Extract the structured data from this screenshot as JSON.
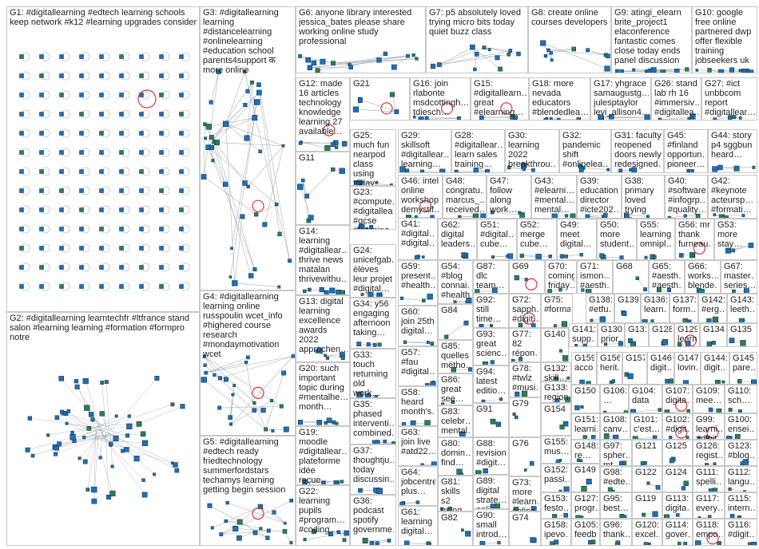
{
  "colors": {
    "edge": "#9aa0a8",
    "node_fill": "#1f6fb2",
    "node_stroke": "#0a2f55",
    "self_loop": "#e0343c",
    "border": "#c8c8c8"
  },
  "groups": [
    {
      "id": "G1",
      "label": "G1: #digitallearning #edtech learning schools keep network #k12 #learning upgrades consider"
    },
    {
      "id": "G2",
      "label": "G2: #digitallearning learntechfr #ltfrance stand salon #learning learning #formation #formpro notre"
    },
    {
      "id": "G3",
      "label": "G3: #digitallearning learning #distancelearning #onlinelearning #education school parents4support क more online"
    },
    {
      "id": "G4",
      "label": "G4: #digitallearning learning online russpoulin wcet_info #highered course research #mondaymotivation wcet"
    },
    {
      "id": "G5",
      "label": "G5: #digitallearning #edtech ready friedtechnology summerfordstars techamys learning getting begin session"
    },
    {
      "id": "G6",
      "label": "G6: anyone library interested jessica_bates please share working online study professional"
    },
    {
      "id": "G7",
      "label": "G7: p5 absolutely loved trying micro bits today quiet buzz class"
    },
    {
      "id": "G8",
      "label": "G8: create online courses developers"
    },
    {
      "id": "G9",
      "label": "G9: atingi_elearn brite_project1 elaconference fantastic comes close today ends panel discussion"
    },
    {
      "id": "G10",
      "label": "G10: google free online partnered dwp offer flexible training jobseekers uk"
    },
    {
      "id": "G11",
      "label": "G11"
    },
    {
      "id": "G12",
      "label": "G12: made 16 articles technology knowledge learning 27 available…"
    },
    {
      "id": "G13",
      "label": "G13: digital learning excellence awards 2022 approchen…"
    },
    {
      "id": "G14",
      "label": "G14: learning #digitallear… thrive news matalan thrivewithu…"
    },
    {
      "id": "G15",
      "label": "G15: #digitallearn… great #elearning…"
    },
    {
      "id": "G16",
      "label": "G16: join rlabonte msdcottingh… tdiesch…"
    },
    {
      "id": "G17",
      "label": "G17: yhgrace samaugustg… julesptaylor levi_allison4…"
    },
    {
      "id": "G18",
      "label": "G18: more nevada educators #blendedlea…"
    },
    {
      "id": "G19",
      "label": "G19: moodle #digitallear… plateforme idée reçue…"
    },
    {
      "id": "G20",
      "label": "G20: such important topic during #mentalhe… month…"
    },
    {
      "id": "G21",
      "label": "G21"
    },
    {
      "id": "G22",
      "label": "G22: learning pupils #program… #coding…"
    },
    {
      "id": "G23",
      "label": "G23: #compute… #digitallea… #gcse #learning…"
    },
    {
      "id": "G24",
      "label": "G24: unicefgab… élèves leur projet #digital…"
    },
    {
      "id": "G25",
      "label": "G25: much fun nearpod class using today…"
    },
    {
      "id": "G26",
      "label": "G26: stand lab rh 16 #immersiv… #digitallea…"
    },
    {
      "id": "G27",
      "label": "G27: #ict unbbcom report #digitallear…"
    },
    {
      "id": "G28",
      "label": "G28: #digitallear… learn sales training…"
    },
    {
      "id": "G29",
      "label": "G29: skillsoft #digitallear… learning…"
    },
    {
      "id": "G30",
      "label": "G30: learning 2022 breakthrou…"
    },
    {
      "id": "G31",
      "label": "G31: faculty reopened doors newly redesigned…"
    },
    {
      "id": "G32",
      "label": "G32: pandemic shift #onlinelea…"
    },
    {
      "id": "G33",
      "label": "G33: touch returning old work…"
    },
    {
      "id": "G34",
      "label": "G34: y56 engaging afternoon taking…"
    },
    {
      "id": "G35",
      "label": "G35: phased interventi… combined…"
    },
    {
      "id": "G36",
      "label": "G36: podcast spotify governme…"
    },
    {
      "id": "G37",
      "label": "G37: thoughtju… today discussin…"
    },
    {
      "id": "G38",
      "label": "G38: primary loved trying vr…"
    },
    {
      "id": "G39",
      "label": "G39: education director #icte202…"
    },
    {
      "id": "G40",
      "label": "G40: #software #infogrp… #quality…"
    },
    {
      "id": "G41",
      "label": "G41: #digital… #digital…"
    },
    {
      "id": "G42",
      "label": "G42: #keynote acteursp… #formati…"
    },
    {
      "id": "G43",
      "label": "G43: #elearni… #mental… mental…"
    },
    {
      "id": "G44",
      "label": "G44: story p4 sggbun heard…"
    },
    {
      "id": "G45",
      "label": "G45: #finland opportun… pioneer…"
    },
    {
      "id": "G46",
      "label": "G46: intel online workshop demystif…"
    },
    {
      "id": "G47",
      "label": "G47: follow along work…"
    },
    {
      "id": "G48",
      "label": "G48: congratu… marcus_… received…"
    },
    {
      "id": "G49",
      "label": "G49: meet digital…"
    },
    {
      "id": "G50",
      "label": "G50: more student…"
    },
    {
      "id": "G51",
      "label": "G51: #digital… cube…"
    },
    {
      "id": "G52",
      "label": "G52: merge cube…"
    },
    {
      "id": "G53",
      "label": "G53: more stay…"
    },
    {
      "id": "G54",
      "label": "G54: #blog connai… #health…"
    },
    {
      "id": "G55",
      "label": "G55: learning omnipl…"
    },
    {
      "id": "G56",
      "label": "G56: mr thank furneau…"
    },
    {
      "id": "G57",
      "label": "G57: #fau #digital…"
    },
    {
      "id": "G58",
      "label": "G58: heard month's…"
    },
    {
      "id": "G59",
      "label": "G59: present… #health…"
    },
    {
      "id": "G60",
      "label": "G60: join 25th digital…"
    },
    {
      "id": "G61",
      "label": "G61: learning digital…"
    },
    {
      "id": "G62",
      "label": "G62: digital leaders…"
    },
    {
      "id": "G63",
      "label": "G63: join live #atd22…"
    },
    {
      "id": "G64",
      "label": "G64: jobcentre plus…"
    },
    {
      "id": "G65",
      "label": "G65: #aesth… #aesth…"
    },
    {
      "id": "G66",
      "label": "G66: works… blende…"
    },
    {
      "id": "G67",
      "label": "G67: master… series…"
    },
    {
      "id": "G68",
      "label": "G68"
    },
    {
      "id": "G69",
      "label": "G69"
    },
    {
      "id": "G70",
      "label": "G70: coming friday…"
    },
    {
      "id": "G71",
      "label": "G71: ismon… #aesth…"
    },
    {
      "id": "G72",
      "label": "G72: sapph… #digit…"
    },
    {
      "id": "G73",
      "label": "G73: more #learn… online…"
    },
    {
      "id": "G74",
      "label": "G74"
    },
    {
      "id": "G75",
      "label": "G75: #formati…"
    },
    {
      "id": "G76",
      "label": "G76"
    },
    {
      "id": "G77",
      "label": "G77: 82 répon…"
    },
    {
      "id": "G78",
      "label": "G78: #twlz #musi…"
    },
    {
      "id": "G79",
      "label": "G79"
    },
    {
      "id": "G80",
      "label": "G80: domin… find…"
    },
    {
      "id": "G81",
      "label": "G81: skills s2 using…"
    },
    {
      "id": "G82",
      "label": "G82"
    },
    {
      "id": "G83",
      "label": "G83: celebr… mental…"
    },
    {
      "id": "G84",
      "label": "G84"
    },
    {
      "id": "G85",
      "label": "G85: quelles métho…"
    },
    {
      "id": "G86",
      "label": "G86: great see…"
    },
    {
      "id": "G87",
      "label": "G87: dlc team…"
    },
    {
      "id": "G88",
      "label": "G88: revision #digit…"
    },
    {
      "id": "G89",
      "label": "G89: digital strate… online…"
    },
    {
      "id": "G90",
      "label": "G90: small introd…"
    },
    {
      "id": "G91",
      "label": "G91"
    },
    {
      "id": "G92",
      "label": "G92: still time…"
    },
    {
      "id": "G93",
      "label": "G93: great scienc…"
    },
    {
      "id": "G94",
      "label": "G94: latest editio…"
    },
    {
      "id": "G95",
      "label": "G95: best…"
    },
    {
      "id": "G96",
      "label": "G96: thank…"
    },
    {
      "id": "G97",
      "label": "G97: spher… mt…"
    },
    {
      "id": "G98",
      "label": "G98: #edte…"
    },
    {
      "id": "G99",
      "label": "G99: learni… #digit…"
    },
    {
      "id": "G100",
      "label": "G100: ensei…"
    },
    {
      "id": "G101",
      "label": "G101: c'est…"
    },
    {
      "id": "G102",
      "label": "G102: #digit…"
    },
    {
      "id": "G103",
      "label": "G103: sam…"
    },
    {
      "id": "G104",
      "label": "G104: data"
    },
    {
      "id": "G105",
      "label": "G105: feedb…"
    },
    {
      "id": "G106",
      "label": "G106: …"
    },
    {
      "id": "G107",
      "label": "G107: digita…"
    },
    {
      "id": "G108",
      "label": "G108: canv…"
    },
    {
      "id": "G109",
      "label": "G109: mee…"
    },
    {
      "id": "G110",
      "label": "G110: sch…"
    },
    {
      "id": "G111",
      "label": "G111: spelli…"
    },
    {
      "id": "G112",
      "label": "G112: langu…"
    },
    {
      "id": "G113",
      "label": "G113: digita…"
    },
    {
      "id": "G114",
      "label": "G114: gover…"
    },
    {
      "id": "G115",
      "label": "G115: intern…"
    },
    {
      "id": "G116",
      "label": "G116: #digit…"
    },
    {
      "id": "G117",
      "label": "G117: every…"
    },
    {
      "id": "G118",
      "label": "G118: empo…"
    },
    {
      "id": "G119",
      "label": "G119"
    },
    {
      "id": "G120",
      "label": "G120: excel…"
    },
    {
      "id": "G121",
      "label": "G121"
    },
    {
      "id": "G122",
      "label": "G122"
    },
    {
      "id": "G123",
      "label": "G123: #blog…"
    },
    {
      "id": "G124",
      "label": "G124"
    },
    {
      "id": "G125",
      "label": "G125"
    },
    {
      "id": "G126",
      "label": "G126: regist…"
    },
    {
      "id": "G127",
      "label": "G127: progr…"
    },
    {
      "id": "G128",
      "label": "G128"
    },
    {
      "id": "G129",
      "label": "G129: learn…"
    },
    {
      "id": "G130",
      "label": "G130: prior…"
    },
    {
      "id": "G131",
      "label": "G131"
    },
    {
      "id": "G132",
      "label": "G132: skill…"
    },
    {
      "id": "G133",
      "label": "G133: region"
    },
    {
      "id": "G134",
      "label": "G134"
    },
    {
      "id": "G135",
      "label": "G135"
    },
    {
      "id": "G136",
      "label": "G136: learn…"
    },
    {
      "id": "G137",
      "label": "G137: form…"
    },
    {
      "id": "G138",
      "label": "G138: #etfu…"
    },
    {
      "id": "G139",
      "label": "G139"
    },
    {
      "id": "G140",
      "label": "G140"
    },
    {
      "id": "G141",
      "label": "G141: supp…"
    },
    {
      "id": "G142",
      "label": "G142: #erg…"
    },
    {
      "id": "G143",
      "label": "G143: leeth…"
    },
    {
      "id": "G144",
      "label": "G144: digit…"
    },
    {
      "id": "G145",
      "label": "G145: pare…"
    },
    {
      "id": "G146",
      "label": "G146: digit…"
    },
    {
      "id": "G147",
      "label": "G147: lovin…"
    },
    {
      "id": "G148",
      "label": "G148: re…"
    },
    {
      "id": "G149",
      "label": "G149"
    },
    {
      "id": "G150",
      "label": "G150"
    },
    {
      "id": "G151",
      "label": "G151: learni…"
    },
    {
      "id": "G152",
      "label": "G152: passi…"
    },
    {
      "id": "G153",
      "label": "G153: festo…"
    },
    {
      "id": "G154",
      "label": "G154"
    },
    {
      "id": "G155",
      "label": "G155: mus…"
    },
    {
      "id": "G156",
      "label": "G156: herit…"
    },
    {
      "id": "G157",
      "label": "G157"
    },
    {
      "id": "G158",
      "label": "G158: ipevo…"
    },
    {
      "id": "G159",
      "label": "G159: acco…"
    }
  ]
}
